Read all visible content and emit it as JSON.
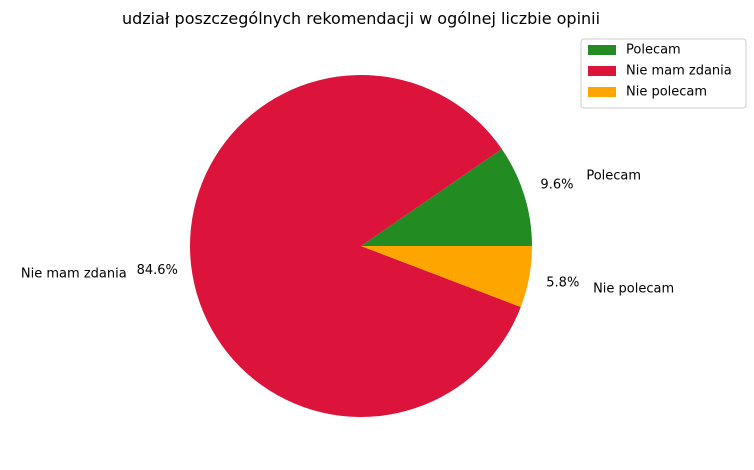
{
  "chart_data": {
    "type": "pie",
    "title": "udział poszczególnych rekomendacji w ogólnej liczbie opinii",
    "slices": [
      {
        "label": "Polecam",
        "value": 9.6,
        "pct_label": "9.6%",
        "color": "#228B22"
      },
      {
        "label": "Nie mam zdania",
        "value": 84.6,
        "pct_label": "84.6%",
        "color": "#DC143C"
      },
      {
        "label": "Nie polecam",
        "value": 5.8,
        "pct_label": "5.8%",
        "color": "#FFA500"
      }
    ],
    "start_angle_deg": 0,
    "direction": "counterclockwise",
    "legend": {
      "position": "top-right",
      "entries": [
        "Polecam",
        "Nie mam zdania",
        "Nie polecam"
      ]
    }
  }
}
